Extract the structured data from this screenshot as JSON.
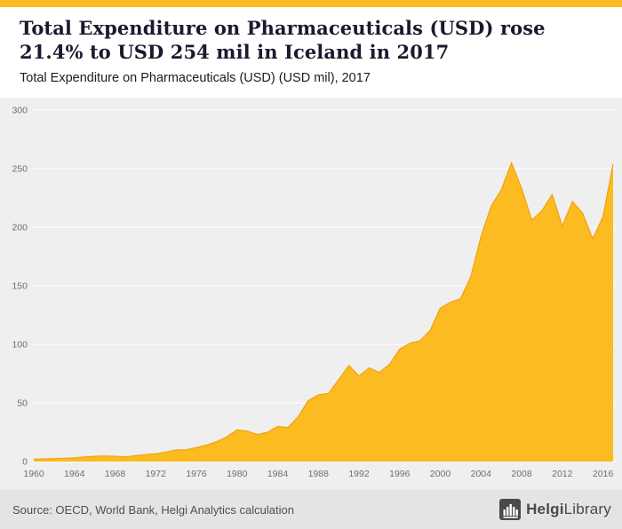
{
  "accent_color": "#fbbb21",
  "header": {
    "title": "Total Expenditure on Pharmaceuticals (USD) rose 21.4% to USD 254 mil in Iceland in 2017",
    "subtitle": "Total Expenditure on Pharmaceuticals (USD) (USD mil), 2017"
  },
  "chart_data": {
    "type": "area",
    "title": "Total Expenditure on Pharmaceuticals (USD) rose 21.4% to USD 254 mil in Iceland in 2017",
    "subtitle": "Total Expenditure on Pharmaceuticals (USD) (USD mil), 2017",
    "series_name": "Total Expenditure on Pharmaceuticals (USD mil)",
    "xlabel": "",
    "ylabel": "",
    "ylim": [
      0,
      300
    ],
    "yticks": [
      0,
      50,
      100,
      150,
      200,
      250,
      300
    ],
    "xticks": [
      1960,
      1964,
      1968,
      1972,
      1976,
      1980,
      1984,
      1988,
      1992,
      1996,
      2000,
      2004,
      2008,
      2012,
      2016
    ],
    "grid": true,
    "legend": "none",
    "plot_bg": "#efefef",
    "grid_color": "#ffffff",
    "fill_color": "#fbbb21",
    "line_color": "#f2a309",
    "x": [
      1960,
      1961,
      1962,
      1963,
      1964,
      1965,
      1966,
      1967,
      1968,
      1969,
      1970,
      1971,
      1972,
      1973,
      1974,
      1975,
      1976,
      1977,
      1978,
      1979,
      1980,
      1981,
      1982,
      1983,
      1984,
      1985,
      1986,
      1987,
      1988,
      1989,
      1990,
      1991,
      1992,
      1993,
      1994,
      1995,
      1996,
      1997,
      1998,
      1999,
      2000,
      2001,
      2002,
      2003,
      2004,
      2005,
      2006,
      2007,
      2008,
      2009,
      2010,
      2011,
      2012,
      2013,
      2014,
      2015,
      2016,
      2017
    ],
    "values": [
      2,
      2.2,
      2.5,
      2.8,
      3.2,
      4,
      4.5,
      4.8,
      4.5,
      4,
      5,
      6,
      6.5,
      8,
      10,
      10,
      12,
      14,
      17,
      21,
      27,
      26,
      23,
      25,
      30,
      29,
      38,
      52,
      57,
      58,
      70,
      82,
      73,
      80,
      76,
      83,
      96,
      101,
      103,
      112,
      131,
      136,
      139,
      158,
      192,
      218,
      232,
      255,
      233,
      206,
      214,
      228,
      201,
      222,
      212,
      190,
      209,
      254
    ]
  },
  "footer": {
    "source": "Source: OECD, World Bank, Helgi Analytics calculation",
    "logo_bold": "Helgi",
    "logo_regular": "Library",
    "logo_icon": "bar-building-icon"
  }
}
